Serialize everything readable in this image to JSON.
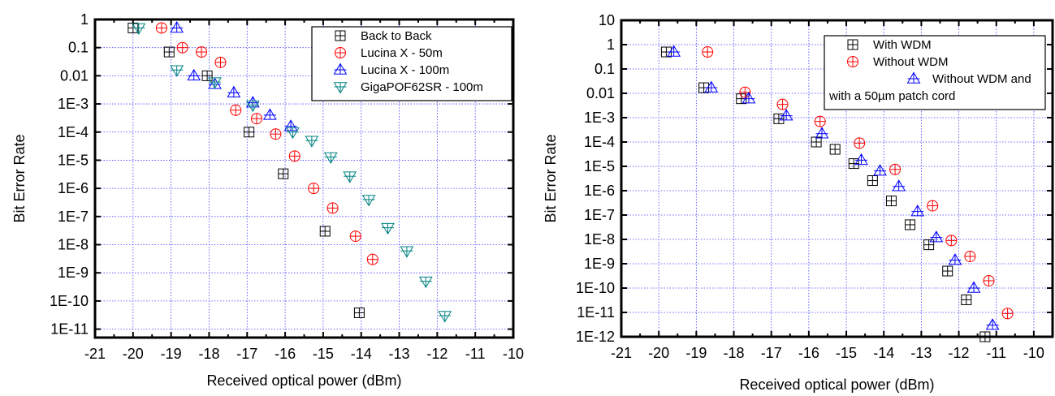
{
  "chart_data": [
    {
      "type": "scatter",
      "title": "",
      "xlabel": "Received optical power (dBm)",
      "ylabel": "Bit Error Rate",
      "xscale": "linear",
      "yscale": "log",
      "xlim": [
        -21,
        -10
      ],
      "ylim": [
        5e-12,
        1
      ],
      "xticks": [
        -21,
        -20,
        -19,
        -18,
        -17,
        -16,
        -15,
        -14,
        -13,
        -12,
        -11,
        -10
      ],
      "yticks": [
        {
          "value": 1,
          "label": "1"
        },
        {
          "value": 0.1,
          "label": "0.1"
        },
        {
          "value": 0.01,
          "label": "0.01"
        },
        {
          "value": 0.001,
          "label": "1E-3"
        },
        {
          "value": 0.0001,
          "label": "1E-4"
        },
        {
          "value": 1e-05,
          "label": "1E-5"
        },
        {
          "value": 1e-06,
          "label": "1E-6"
        },
        {
          "value": 1e-07,
          "label": "1E-7"
        },
        {
          "value": 1e-08,
          "label": "1E-8"
        },
        {
          "value": 1e-09,
          "label": "1E-9"
        },
        {
          "value": 1e-10,
          "label": "1E-10"
        },
        {
          "value": 1e-11,
          "label": "1E-11"
        }
      ],
      "grid": true,
      "legend_position": "top-right",
      "series": [
        {
          "name": "Back to Back",
          "marker": "boxplus",
          "color": "#000000",
          "x": [
            -20.0,
            -19.05,
            -18.05,
            -16.95,
            -16.05,
            -14.95,
            -14.05
          ],
          "y": [
            0.5,
            0.07,
            0.01,
            0.0001,
            3.3e-06,
            3e-08,
            3.8e-11
          ]
        },
        {
          "name": "Lucina X - 50m",
          "marker": "circleplus",
          "color": "#ff0000",
          "x": [
            -19.25,
            -18.7,
            -18.2,
            -17.7,
            -17.3,
            -16.75,
            -16.25,
            -15.75,
            -15.25,
            -14.75,
            -14.15,
            -13.7
          ],
          "y": [
            0.5,
            0.1,
            0.07,
            0.03,
            0.0006,
            0.0003,
            8.5e-05,
            1.4e-05,
            1e-06,
            2e-07,
            2e-08,
            3e-09
          ]
        },
        {
          "name": "Lucina X - 100m",
          "marker": "triangle-up",
          "color": "#0000ff",
          "x": [
            -18.85,
            -18.4,
            -17.85,
            -17.35,
            -16.85,
            -16.4,
            -15.85
          ],
          "y": [
            0.5,
            0.01,
            0.005,
            0.0025,
            0.0011,
            0.0004,
            0.00016
          ]
        },
        {
          "name": "GigaPOF62SR - 100m",
          "marker": "triangle-down",
          "color": "#008080",
          "x": [
            -19.85,
            -18.85,
            -17.85,
            -16.85,
            -15.8,
            -15.3,
            -14.8,
            -14.3,
            -13.8,
            -13.3,
            -12.8,
            -12.3,
            -11.8
          ],
          "y": [
            0.5,
            0.016,
            0.006,
            0.0009,
            0.0001,
            5e-05,
            1.3e-05,
            2.7e-06,
            4e-07,
            4e-08,
            6e-09,
            5e-10,
            3e-11
          ]
        }
      ]
    },
    {
      "type": "scatter",
      "title": "",
      "xlabel": "Received optical power (dBm)",
      "ylabel": "Bit Error Rate",
      "xscale": "linear",
      "yscale": "log",
      "xlim": [
        -21,
        -9.5
      ],
      "ylim": [
        1e-12,
        10
      ],
      "xticks": [
        -21,
        -20,
        -19,
        -18,
        -17,
        -16,
        -15,
        -14,
        -13,
        -12,
        -11,
        -10
      ],
      "yticks": [
        {
          "value": 10,
          "label": "10"
        },
        {
          "value": 1,
          "label": "1"
        },
        {
          "value": 0.1,
          "label": "0.1"
        },
        {
          "value": 0.01,
          "label": "0.01"
        },
        {
          "value": 0.001,
          "label": "1E-3"
        },
        {
          "value": 0.0001,
          "label": "1E-4"
        },
        {
          "value": 1e-05,
          "label": "1E-5"
        },
        {
          "value": 1e-06,
          "label": "1E-6"
        },
        {
          "value": 1e-07,
          "label": "1E-7"
        },
        {
          "value": 1e-08,
          "label": "1E-8"
        },
        {
          "value": 1e-09,
          "label": "1E-9"
        },
        {
          "value": 1e-10,
          "label": "1E-10"
        },
        {
          "value": 1e-11,
          "label": "1E-11"
        },
        {
          "value": 1e-12,
          "label": "1E-12"
        }
      ],
      "grid": true,
      "legend_position": "top-right",
      "series": [
        {
          "name": "With WDM",
          "marker": "boxplus",
          "color": "#000000",
          "x": [
            -19.8,
            -18.8,
            -17.8,
            -16.8,
            -15.8,
            -15.3,
            -14.8,
            -14.3,
            -13.8,
            -13.3,
            -12.8,
            -12.3,
            -11.8,
            -11.3
          ],
          "y": [
            0.5,
            0.017,
            0.006,
            0.0009,
            0.0001,
            5e-05,
            1.3e-05,
            2.6e-06,
            3.8e-07,
            4e-08,
            6e-09,
            5e-10,
            3.3e-11,
            1e-12
          ]
        },
        {
          "name": "Without WDM",
          "marker": "circleplus",
          "color": "#ff0000",
          "x": [
            -18.7,
            -17.7,
            -16.7,
            -15.7,
            -14.65,
            -13.7,
            -12.7,
            -12.2,
            -11.7,
            -11.2,
            -10.7
          ],
          "y": [
            0.5,
            0.011,
            0.0035,
            0.0007,
            9e-05,
            7.5e-06,
            2.4e-07,
            9e-09,
            2e-09,
            2e-10,
            9e-12
          ]
        },
        {
          "name": "Without WDM and with a 50µm patch cord",
          "legend_lines": [
            "Without WDM and",
            "with a 50µm patch cord"
          ],
          "marker": "triangle-up",
          "color": "#0000ff",
          "x": [
            -19.6,
            -18.6,
            -17.6,
            -16.6,
            -15.65,
            -14.6,
            -14.1,
            -13.6,
            -13.1,
            -12.6,
            -12.1,
            -11.6,
            -11.1
          ],
          "y": [
            0.5,
            0.017,
            0.006,
            0.0012,
            0.00022,
            1.8e-05,
            6.5e-06,
            1.5e-06,
            1.4e-07,
            1.2e-08,
            1.4e-09,
            1e-10,
            3e-12
          ]
        }
      ]
    }
  ]
}
